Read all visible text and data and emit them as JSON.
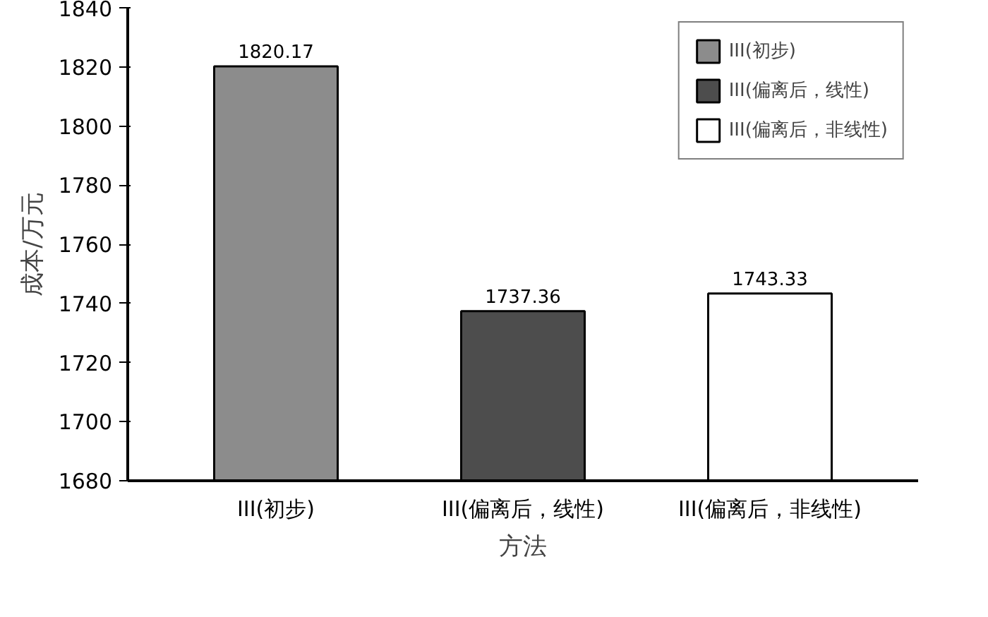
{
  "chart_data": {
    "type": "bar",
    "xlabel": "方法",
    "ylabel": "成本/万元",
    "categories": [
      "III(初步)",
      "III(偏离后，线性)",
      "III(偏离后，非线性)"
    ],
    "series": [
      {
        "name": "III(初步)",
        "color": "#8c8c8c",
        "values": [
          1820.17,
          null,
          null
        ]
      },
      {
        "name": "III(偏离后，线性)",
        "color": "#4d4d4d",
        "values": [
          null,
          1737.36,
          null
        ]
      },
      {
        "name": "III(偏离后，非线性)",
        "color": "#ffffff",
        "values": [
          null,
          null,
          1743.33
        ]
      }
    ],
    "ylim": [
      1680,
      1840
    ],
    "yticks": [
      1680,
      1700,
      1720,
      1740,
      1760,
      1780,
      1800,
      1820,
      1840
    ],
    "data_labels": true,
    "legend": "top right",
    "grid": false
  }
}
